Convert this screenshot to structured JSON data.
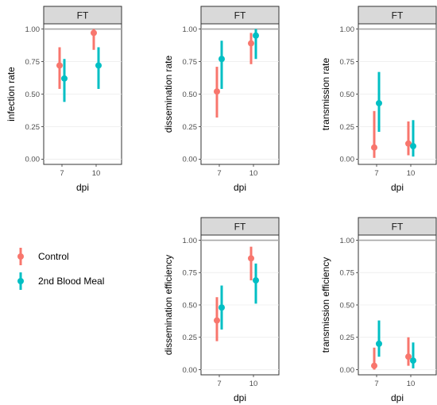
{
  "colors": {
    "Control": "#f8766d",
    "2nd Blood Meal": "#00bfc4"
  },
  "legend": {
    "entries": [
      "Control",
      "2nd Blood Meal"
    ]
  },
  "chart_data": [
    {
      "type": "scatter",
      "facet_label": "FT",
      "xlabel": "dpi",
      "ylabel": "infection rate",
      "categories": [
        "7",
        "10"
      ],
      "ylim": [
        0,
        1
      ],
      "yticks": [
        "0.00",
        "0.25",
        "0.50",
        "0.75",
        "1.00"
      ],
      "series": [
        {
          "name": "Control",
          "values": [
            0.72,
            0.97
          ],
          "lower": [
            0.54,
            0.84
          ],
          "upper": [
            0.86,
            1.0
          ]
        },
        {
          "name": "2nd Blood Meal",
          "values": [
            0.62,
            0.72
          ],
          "lower": [
            0.44,
            0.54
          ],
          "upper": [
            0.77,
            0.86
          ]
        }
      ]
    },
    {
      "type": "scatter",
      "facet_label": "FT",
      "xlabel": "dpi",
      "ylabel": "dissemination rate",
      "categories": [
        "7",
        "10"
      ],
      "ylim": [
        0,
        1
      ],
      "yticks": [
        "0.00",
        "0.25",
        "0.50",
        "0.75",
        "1.00"
      ],
      "series": [
        {
          "name": "Control",
          "values": [
            0.52,
            0.89
          ],
          "lower": [
            0.32,
            0.73
          ],
          "upper": [
            0.71,
            0.97
          ]
        },
        {
          "name": "2nd Blood Meal",
          "values": [
            0.77,
            0.95
          ],
          "lower": [
            0.54,
            0.77
          ],
          "upper": [
            0.91,
            1.0
          ]
        }
      ]
    },
    {
      "type": "scatter",
      "facet_label": "FT",
      "xlabel": "dpi",
      "ylabel": "transmission rate",
      "categories": [
        "7",
        "10"
      ],
      "ylim": [
        0,
        1
      ],
      "yticks": [
        "0.00",
        "0.25",
        "0.50",
        "0.75",
        "1.00"
      ],
      "series": [
        {
          "name": "Control",
          "values": [
            0.09,
            0.12
          ],
          "lower": [
            0.01,
            0.03
          ],
          "upper": [
            0.37,
            0.29
          ]
        },
        {
          "name": "2nd Blood Meal",
          "values": [
            0.43,
            0.1
          ],
          "lower": [
            0.21,
            0.02
          ],
          "upper": [
            0.67,
            0.3
          ]
        }
      ]
    },
    {
      "type": "scatter",
      "facet_label": "FT",
      "xlabel": "dpi",
      "ylabel": "dissemination efficiency",
      "categories": [
        "7",
        "10"
      ],
      "ylim": [
        0,
        1
      ],
      "yticks": [
        "0.00",
        "0.25",
        "0.50",
        "0.75",
        "1.00"
      ],
      "series": [
        {
          "name": "Control",
          "values": [
            0.38,
            0.86
          ],
          "lower": [
            0.22,
            0.69
          ],
          "upper": [
            0.56,
            0.95
          ]
        },
        {
          "name": "2nd Blood Meal",
          "values": [
            0.48,
            0.69
          ],
          "lower": [
            0.31,
            0.51
          ],
          "upper": [
            0.65,
            0.82
          ]
        }
      ]
    },
    {
      "type": "scatter",
      "facet_label": "FT",
      "xlabel": "dpi",
      "ylabel": "transmission efficiency",
      "categories": [
        "7",
        "10"
      ],
      "ylim": [
        0,
        1
      ],
      "yticks": [
        "0.00",
        "0.25",
        "0.50",
        "0.75",
        "1.00"
      ],
      "series": [
        {
          "name": "Control",
          "values": [
            0.03,
            0.1
          ],
          "lower": [
            0.0,
            0.03
          ],
          "upper": [
            0.17,
            0.25
          ]
        },
        {
          "name": "2nd Blood Meal",
          "values": [
            0.2,
            0.07
          ],
          "lower": [
            0.1,
            0.01
          ],
          "upper": [
            0.38,
            0.21
          ]
        }
      ]
    }
  ]
}
